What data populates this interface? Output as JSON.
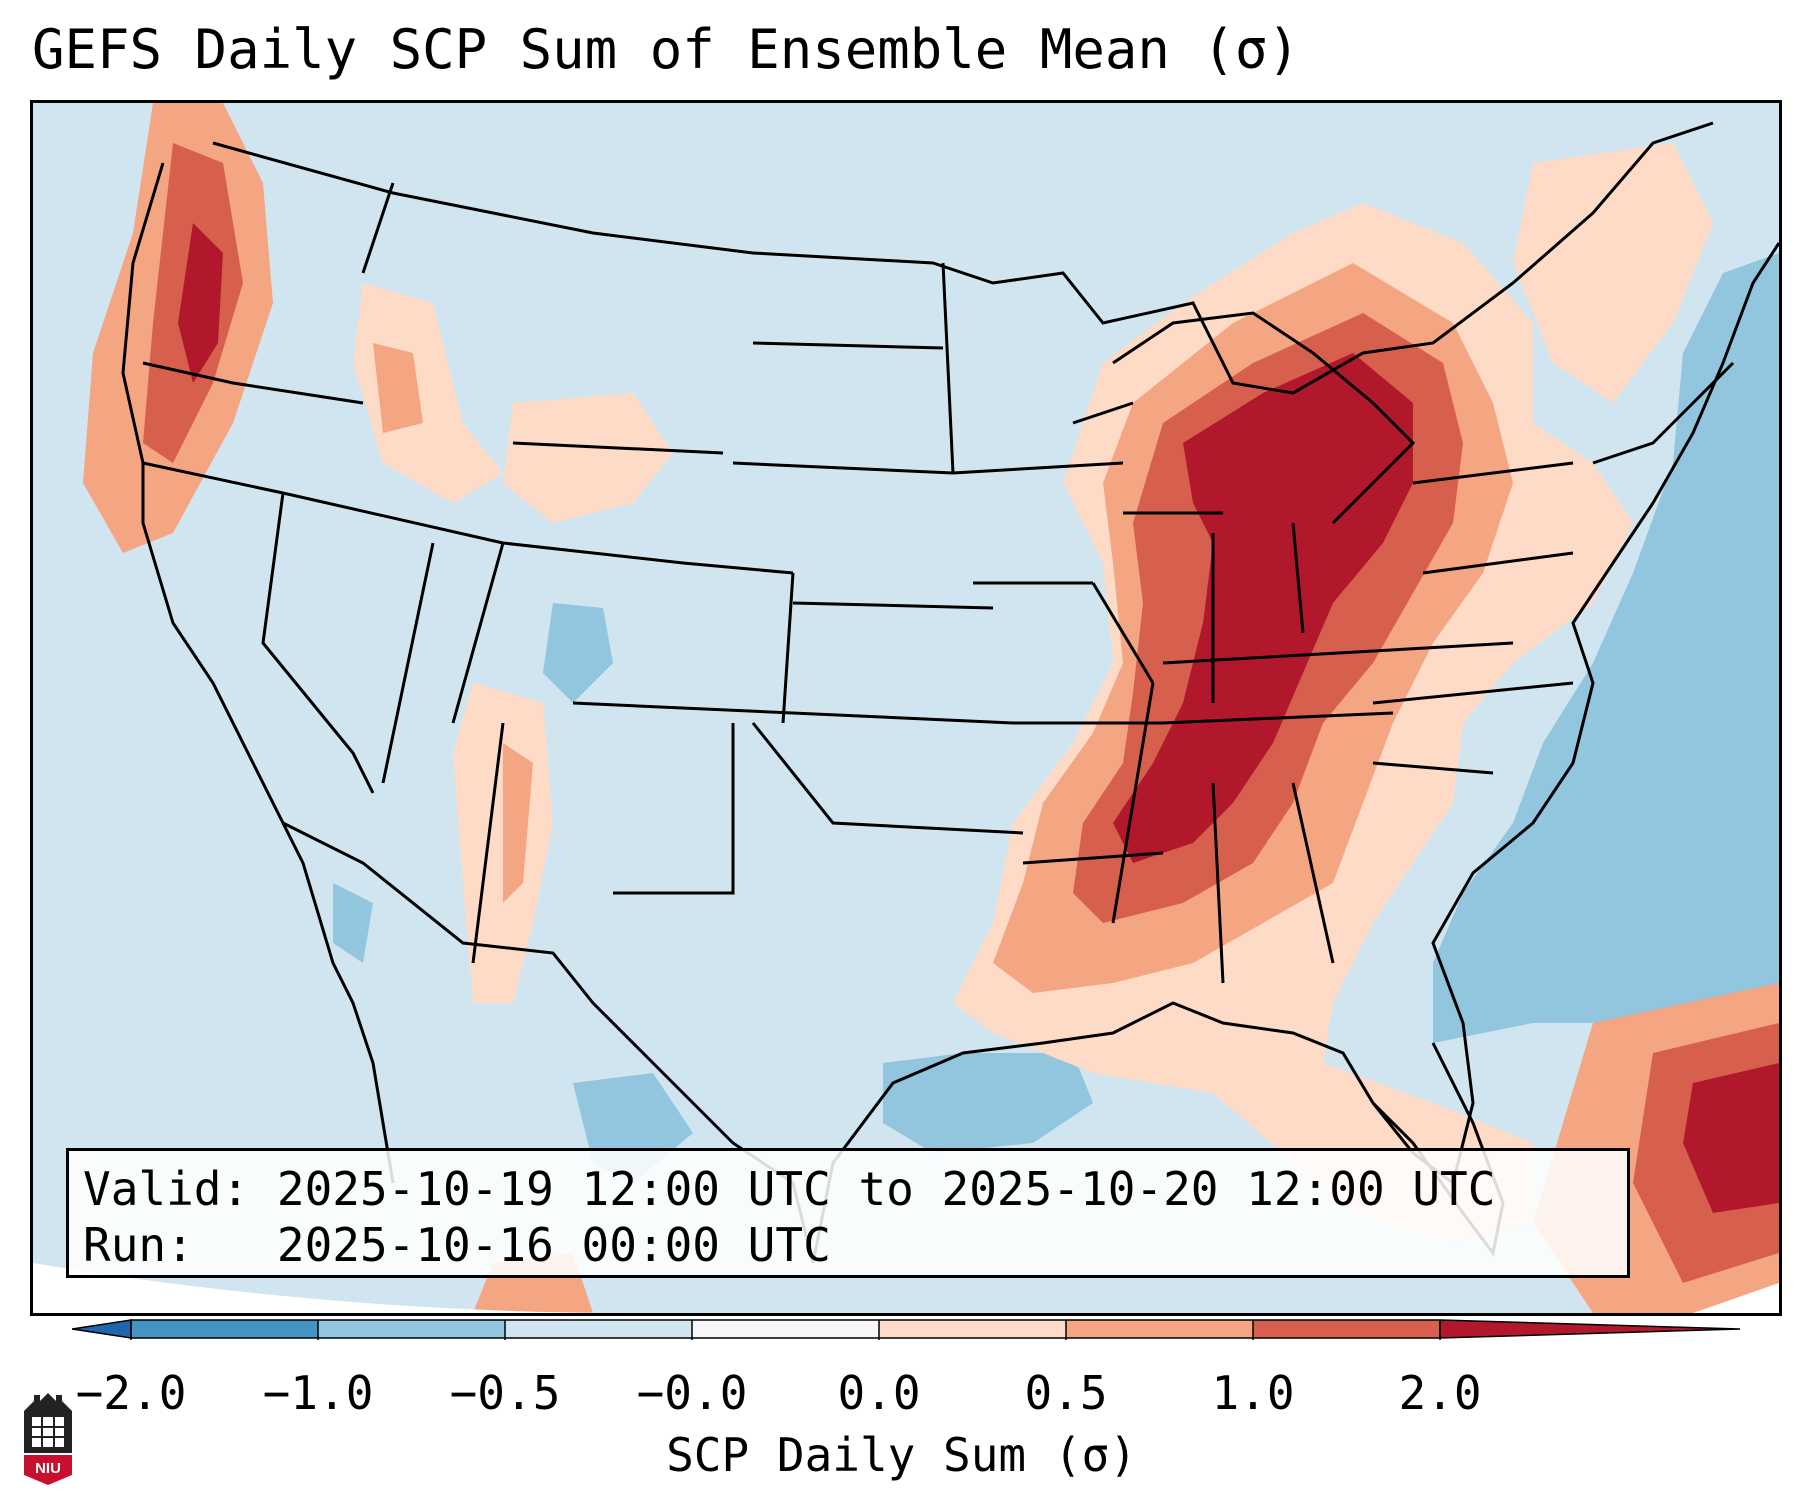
{
  "title": "GEFS Daily SCP Sum of Ensemble Mean (σ)",
  "info": {
    "valid_label": "Valid:",
    "valid_value": "2025-10-19 12:00 UTC to 2025-10-20 12:00 UTC",
    "run_label": "Run:",
    "run_value": "2025-10-16 00:00 UTC"
  },
  "colorbar": {
    "label": "SCP Daily Sum (σ)",
    "ticks": [
      "−2.0",
      "−1.0",
      "−0.5",
      "−0.0",
      "0.0",
      "0.5",
      "1.0",
      "2.0"
    ],
    "bins": [
      {
        "range": "-2.0 to -1.0",
        "color": "#4393c3"
      },
      {
        "range": "-1.0 to -0.5",
        "color": "#92c5de"
      },
      {
        "range": "-0.5 to -0.0",
        "color": "#d1e5f0"
      },
      {
        "range": "-0.0 to 0.0",
        "color": "#f7f7f7"
      },
      {
        "range": "0.0 to 0.5",
        "color": "#fddbc7"
      },
      {
        "range": "0.5 to 1.0",
        "color": "#f4a582"
      },
      {
        "range": "1.0 to 2.0",
        "color": "#d6604d"
      }
    ],
    "extend_low_color": "#2166ac",
    "extend_high_color": "#b2182b"
  },
  "map": {
    "region": "Contiguous United States",
    "field": "SCP Daily Sum anomaly (σ)",
    "max_anomaly_regions": [
      "Ohio Valley",
      "Great Lakes",
      "Tennessee Valley",
      "Alabama",
      "Mississippi"
    ],
    "colors": {
      "ocean_background": "#d1e5f0",
      "negative_ocean": "#92c5de",
      "strong_positive": "#b2182b",
      "positive": "#d6604d",
      "weak_positive": "#f4a582",
      "slight_positive": "#fddbc7",
      "state_lines": "#000000"
    }
  },
  "logo": {
    "text": "NIU",
    "color": "#c8102e"
  }
}
